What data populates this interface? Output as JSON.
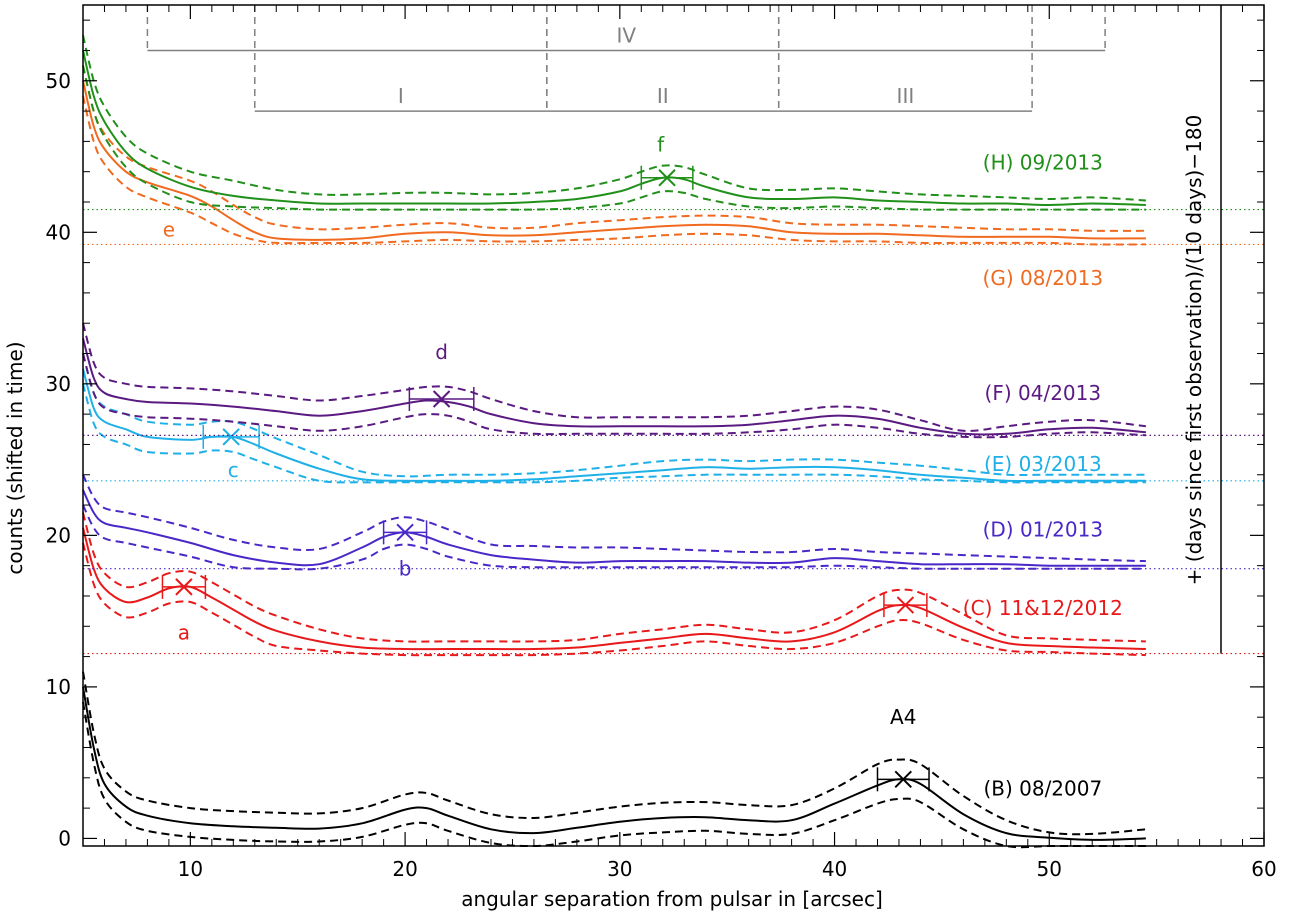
{
  "chart_data": {
    "type": "line",
    "xlabel": "angular separation from pulsar in [arcsec]",
    "ylabel": "counts (shifted in time)",
    "ylabel_right": "+ (days since first observation)/(10 days)−180",
    "xlim": [
      5,
      60
    ],
    "ylim": [
      -0.5,
      55
    ],
    "x_ticks": [
      10,
      20,
      30,
      40,
      50,
      60
    ],
    "y_ticks": [
      0,
      10,
      20,
      30,
      40,
      50
    ],
    "regions": [
      {
        "name": "IV",
        "x_start": 8,
        "x_end": 52.6,
        "y": 52
      },
      {
        "name": "I",
        "x_start": 13,
        "x_end": 26.6,
        "y": 48
      },
      {
        "name": "II",
        "x_start": 26.6,
        "x_end": 37.4,
        "y": 48
      },
      {
        "name": "III",
        "x_start": 37.4,
        "x_end": 49.2,
        "y": 48
      }
    ],
    "series": [
      {
        "name": "(B) 08/2007",
        "color": "#000000",
        "baseline": null,
        "marker_label": "A4",
        "x": [
          5,
          5.5,
          6,
          7,
          8,
          10,
          12,
          14,
          16,
          18,
          20,
          21,
          22,
          24,
          26,
          28,
          30,
          32,
          34,
          36,
          38,
          40,
          42,
          43,
          44,
          46,
          48,
          50,
          52,
          54.5
        ],
        "values": [
          10,
          6,
          3.6,
          2.1,
          1.5,
          1.0,
          0.8,
          0.7,
          0.65,
          1.0,
          1.9,
          2.0,
          1.5,
          0.6,
          0.35,
          0.7,
          1.1,
          1.35,
          1.4,
          1.2,
          1.2,
          2.3,
          3.5,
          3.9,
          3.6,
          1.6,
          0.35,
          0.05,
          -0.1,
          0.0
        ],
        "upper": [
          11,
          7,
          4.6,
          3.1,
          2.5,
          2.0,
          1.8,
          1.7,
          1.65,
          2.0,
          2.9,
          3.0,
          2.5,
          1.6,
          1.35,
          1.7,
          2.1,
          2.35,
          2.4,
          2.2,
          2.2,
          3.3,
          4.9,
          5.2,
          4.9,
          2.8,
          1.2,
          0.4,
          0.3,
          0.6
        ],
        "lower": [
          9,
          5,
          2.6,
          1.1,
          0.5,
          0.1,
          -0.1,
          -0.2,
          -0.2,
          0.1,
          0.9,
          1.0,
          0.5,
          -0.3,
          -0.5,
          -0.2,
          0.2,
          0.4,
          0.5,
          0.3,
          0.3,
          1.2,
          2.3,
          2.6,
          2.4,
          0.6,
          -0.5,
          -0.5,
          -0.5,
          -0.5
        ],
        "peak": {
          "x": 43.2,
          "y": 3.9,
          "xerr": 1.2,
          "label": "A4",
          "label_x": 43.2,
          "label_y": 8
        }
      },
      {
        "name": "(C) 11&12/2012",
        "color": "#e8191a",
        "baseline": 12.2,
        "x": [
          5,
          5.5,
          6,
          7,
          8,
          9,
          10,
          11,
          12,
          13,
          14,
          16,
          18,
          20,
          22,
          24,
          26,
          28,
          30,
          32,
          34,
          36,
          38,
          40,
          42,
          43,
          44,
          46,
          48,
          50,
          52,
          54.5
        ],
        "values": [
          20.5,
          17.8,
          16.5,
          15.6,
          15.9,
          16.5,
          16.6,
          15.9,
          15.1,
          14.3,
          13.7,
          13.0,
          12.6,
          12.5,
          12.5,
          12.5,
          12.5,
          12.6,
          12.9,
          13.2,
          13.5,
          13.2,
          13.0,
          13.6,
          15.0,
          15.4,
          15.2,
          13.9,
          12.9,
          12.7,
          12.6,
          12.5
        ],
        "upper": [
          21.5,
          18.8,
          17.5,
          16.6,
          16.9,
          17.5,
          17.6,
          16.9,
          16.1,
          15.3,
          14.7,
          13.8,
          13.2,
          13.0,
          13.0,
          13.0,
          13.0,
          13.1,
          13.5,
          13.8,
          14.1,
          13.8,
          13.6,
          14.4,
          16.0,
          16.4,
          16.2,
          14.8,
          13.4,
          13.2,
          13.1,
          13.0
        ],
        "lower": [
          19.5,
          16.8,
          15.5,
          14.6,
          14.9,
          15.5,
          15.6,
          14.9,
          14.1,
          13.3,
          12.7,
          12.4,
          12.2,
          12.1,
          12.1,
          12.1,
          12.1,
          12.2,
          12.4,
          12.7,
          13.0,
          12.7,
          12.5,
          12.9,
          14.0,
          14.4,
          14.2,
          13.1,
          12.4,
          12.3,
          12.2,
          12.1
        ],
        "peak": {
          "x": 9.7,
          "y": 16.6,
          "xerr": 1.0,
          "label": "a",
          "label_x": 9.7,
          "label_y": 13.6
        },
        "peak2": {
          "x": 43.3,
          "y": 15.4,
          "xerr": 1.0
        }
      },
      {
        "name": "(D) 01/2013",
        "color": "#4a28c8",
        "baseline": 17.8,
        "x": [
          5,
          5.5,
          6,
          7,
          8,
          10,
          12,
          14,
          16,
          18,
          19,
          20,
          21,
          22,
          24,
          26,
          28,
          30,
          32,
          34,
          36,
          38,
          40,
          42,
          44,
          46,
          48,
          50,
          52,
          54.5
        ],
        "values": [
          23,
          21.5,
          20.8,
          20.5,
          20.2,
          19.5,
          18.7,
          18.2,
          18.1,
          19.2,
          19.9,
          20.2,
          19.9,
          19.4,
          18.7,
          18.4,
          18.2,
          18.3,
          18.3,
          18.3,
          18.2,
          18.2,
          18.5,
          18.3,
          18.1,
          18.1,
          18.1,
          18.0,
          18.0,
          18.0
        ],
        "upper": [
          24,
          22.5,
          21.8,
          21.5,
          21.2,
          20.5,
          19.7,
          19.2,
          19.1,
          20.2,
          20.9,
          21.2,
          20.9,
          20.4,
          19.4,
          19.3,
          19.2,
          19.2,
          19.1,
          19.0,
          18.9,
          18.9,
          19.1,
          18.9,
          18.8,
          18.7,
          18.6,
          18.5,
          18.4,
          18.3
        ],
        "lower": [
          22,
          20.5,
          19.8,
          19.5,
          19.2,
          18.6,
          17.9,
          17.8,
          17.8,
          18.4,
          19.1,
          19.4,
          19.1,
          18.6,
          18.0,
          17.9,
          17.9,
          17.9,
          17.9,
          17.9,
          17.9,
          17.9,
          18.0,
          17.9,
          17.8,
          17.8,
          17.8,
          17.8,
          17.8,
          17.8
        ],
        "peak": {
          "x": 20.0,
          "y": 20.2,
          "xerr": 1.0,
          "label": "b",
          "label_x": 20.0,
          "label_y": 17.8
        }
      },
      {
        "name": "(E) 03/2013",
        "color": "#1fb0e8",
        "baseline": 23.6,
        "x": [
          5,
          5.5,
          6,
          7,
          8,
          10,
          11,
          12,
          13,
          14,
          16,
          18,
          20,
          22,
          24,
          26,
          28,
          30,
          32,
          34,
          36,
          38,
          40,
          42,
          44,
          46,
          48,
          50,
          52,
          54.5
        ],
        "values": [
          31,
          28.4,
          27.5,
          27.0,
          26.5,
          26.3,
          26.5,
          26.5,
          26.0,
          25.4,
          24.4,
          23.7,
          23.6,
          23.6,
          23.6,
          23.7,
          23.9,
          24.1,
          24.3,
          24.5,
          24.4,
          24.5,
          24.5,
          24.3,
          24.0,
          23.8,
          23.6,
          23.6,
          23.6,
          23.6
        ],
        "upper": [
          32,
          29.4,
          28.5,
          28.0,
          27.5,
          27.3,
          27.5,
          27.5,
          27.0,
          26.4,
          25.3,
          24.2,
          23.9,
          24.0,
          24.0,
          24.1,
          24.3,
          24.6,
          24.9,
          25.0,
          24.9,
          25.0,
          25.0,
          24.8,
          24.6,
          24.3,
          24.0,
          24.0,
          24.0,
          24.0
        ],
        "lower": [
          30,
          27.4,
          26.5,
          26.0,
          25.5,
          25.4,
          25.6,
          25.5,
          25.0,
          24.5,
          23.6,
          23.5,
          23.5,
          23.5,
          23.5,
          23.5,
          23.6,
          23.8,
          23.9,
          24.0,
          24.0,
          24.0,
          24.0,
          23.9,
          23.7,
          23.6,
          23.5,
          23.5,
          23.5,
          23.5
        ],
        "peak": {
          "x": 11.9,
          "y": 26.5,
          "xerr": 1.3,
          "label": "c",
          "label_x": 12.0,
          "label_y": 24.3
        }
      },
      {
        "name": "(F) 04/2013",
        "color": "#5a1a82",
        "baseline": 26.6,
        "x": [
          5,
          5.5,
          6,
          7,
          8,
          10,
          12,
          14,
          16,
          18,
          20,
          21,
          22,
          23,
          24,
          26,
          28,
          30,
          32,
          34,
          36,
          38,
          40,
          42,
          44,
          46,
          48,
          50,
          52,
          54.5
        ],
        "values": [
          33,
          30.4,
          29.4,
          29.0,
          28.8,
          28.7,
          28.5,
          28.2,
          27.9,
          28.2,
          28.7,
          28.9,
          28.8,
          28.5,
          28.0,
          27.4,
          27.2,
          27.2,
          27.2,
          27.2,
          27.3,
          27.6,
          27.9,
          27.7,
          27.1,
          26.7,
          26.7,
          27.0,
          27.1,
          26.8
        ],
        "upper": [
          34,
          31.4,
          30.4,
          30.0,
          29.8,
          29.7,
          29.5,
          29.2,
          28.9,
          29.2,
          29.6,
          29.8,
          29.8,
          29.5,
          29.0,
          28.2,
          27.8,
          27.8,
          27.8,
          27.8,
          27.9,
          28.2,
          28.5,
          28.3,
          27.6,
          26.9,
          27.2,
          27.5,
          27.6,
          27.2
        ],
        "lower": [
          32,
          29.4,
          28.4,
          28.0,
          27.8,
          27.7,
          27.5,
          27.2,
          26.9,
          27.2,
          27.8,
          28.0,
          27.9,
          27.5,
          27.0,
          26.7,
          26.7,
          26.7,
          26.7,
          26.7,
          26.8,
          27.0,
          27.3,
          27.1,
          26.7,
          26.5,
          26.5,
          26.7,
          26.8,
          26.6
        ],
        "peak": {
          "x": 21.7,
          "y": 29.0,
          "xerr": 1.5,
          "label": "d",
          "label_x": 21.7,
          "label_y": 32.1
        }
      },
      {
        "name": "(G) 08/2013",
        "color": "#f06a20",
        "baseline": 39.2,
        "x": [
          5,
          5.5,
          6,
          7,
          8,
          10,
          11,
          12,
          13,
          14,
          16,
          18,
          20,
          22,
          24,
          26,
          28,
          30,
          32,
          34,
          36,
          38,
          40,
          42,
          44,
          46,
          48,
          50,
          52,
          54.5
        ],
        "values": [
          50,
          47,
          45.5,
          44.0,
          43.3,
          42.4,
          41.7,
          40.8,
          40.0,
          39.6,
          39.5,
          39.6,
          39.9,
          40.0,
          39.8,
          39.8,
          40.0,
          40.2,
          40.4,
          40.5,
          40.4,
          40.0,
          39.9,
          39.9,
          39.8,
          39.7,
          39.7,
          39.7,
          39.6,
          39.6
        ],
        "upper": [
          51,
          48,
          46.5,
          45.0,
          44.3,
          43.4,
          42.7,
          41.8,
          41.0,
          40.5,
          40.2,
          40.3,
          40.5,
          40.6,
          40.3,
          40.3,
          40.6,
          40.8,
          41.0,
          41.1,
          41.0,
          40.6,
          40.5,
          40.5,
          40.4,
          40.3,
          40.2,
          40.2,
          40.1,
          40.1
        ],
        "lower": [
          49,
          46,
          44.5,
          43.0,
          42.3,
          41.3,
          40.6,
          39.9,
          39.5,
          39.3,
          39.3,
          39.3,
          39.4,
          39.5,
          39.4,
          39.4,
          39.5,
          39.6,
          39.8,
          39.9,
          39.8,
          39.5,
          39.4,
          39.4,
          39.3,
          39.3,
          39.3,
          39.3,
          39.2,
          39.2
        ],
        "label": {
          "text": "e",
          "x": 9.0,
          "y": 40.2
        }
      },
      {
        "name": "(H) 09/2013",
        "color": "#20901a",
        "baseline": 41.5,
        "x": [
          5,
          5.5,
          6,
          7,
          8,
          10,
          12,
          14,
          16,
          18,
          20,
          22,
          24,
          26,
          28,
          30,
          31,
          32,
          33,
          34,
          36,
          38,
          40,
          42,
          44,
          46,
          48,
          50,
          52,
          54.5
        ],
        "values": [
          52,
          49,
          47.3,
          45.3,
          44.2,
          43.0,
          42.4,
          42.1,
          41.9,
          41.9,
          41.9,
          41.9,
          41.9,
          42.0,
          42.2,
          42.7,
          43.2,
          43.6,
          43.5,
          43.0,
          42.3,
          42.2,
          42.3,
          42.1,
          42.0,
          41.9,
          41.9,
          41.8,
          41.9,
          41.8
        ],
        "upper": [
          53,
          50,
          48.3,
          46.3,
          45.2,
          44.0,
          43.4,
          42.8,
          42.5,
          42.5,
          42.6,
          42.6,
          42.5,
          42.6,
          42.9,
          43.5,
          44.0,
          44.4,
          44.3,
          43.8,
          42.9,
          42.8,
          42.9,
          42.7,
          42.5,
          42.4,
          42.3,
          42.2,
          42.3,
          42.1
        ],
        "lower": [
          51,
          48,
          46.3,
          44.3,
          43.2,
          42.0,
          41.7,
          41.6,
          41.5,
          41.5,
          41.5,
          41.5,
          41.5,
          41.5,
          41.6,
          41.9,
          42.3,
          42.7,
          42.6,
          42.2,
          41.7,
          41.6,
          41.7,
          41.6,
          41.5,
          41.5,
          41.5,
          41.5,
          41.5,
          41.5
        ],
        "peak": {
          "x": 32.2,
          "y": 43.6,
          "xerr": 1.2,
          "label": "f",
          "label_x": 31.9,
          "label_y": 45.8
        }
      }
    ]
  }
}
